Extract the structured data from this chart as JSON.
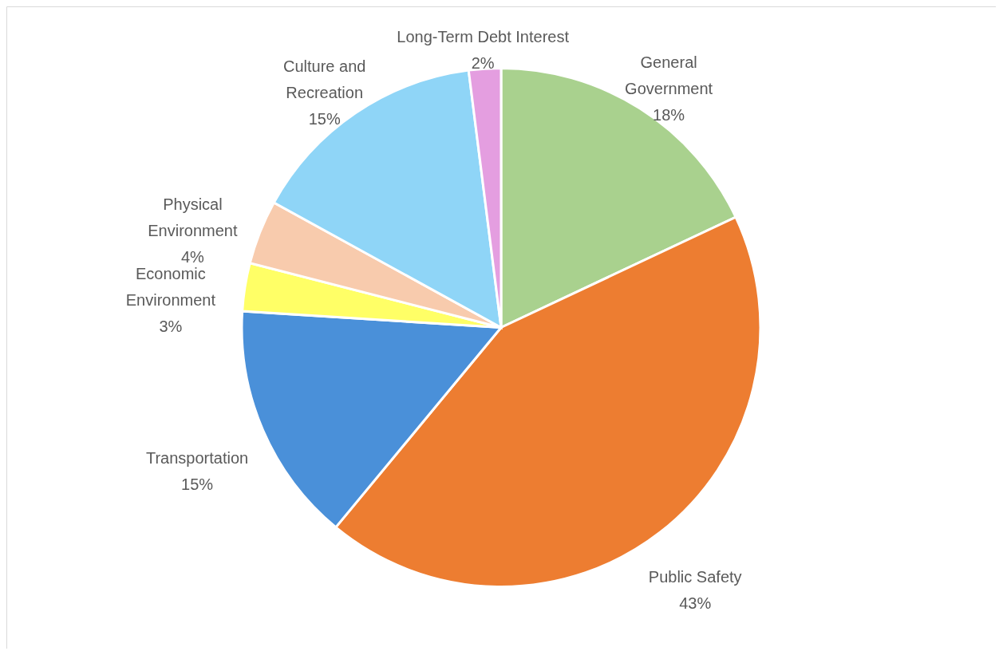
{
  "chart_data": {
    "type": "pie",
    "categories": [
      "General Government",
      "Public Safety",
      "Transportation",
      "Economic Environment",
      "Physical Environment",
      "Culture and Recreation",
      "Long-Term Debt Interest"
    ],
    "values": [
      18,
      43,
      15,
      3,
      4,
      15,
      2
    ],
    "colors": [
      "#a9d18e",
      "#ed7d31",
      "#4a90d9",
      "#ffff66",
      "#f8cbad",
      "#8fd5f7",
      "#e49ee0"
    ],
    "value_labels": [
      "18%",
      "43%",
      "15%",
      "3%",
      "4%",
      "15%",
      "2%"
    ]
  }
}
